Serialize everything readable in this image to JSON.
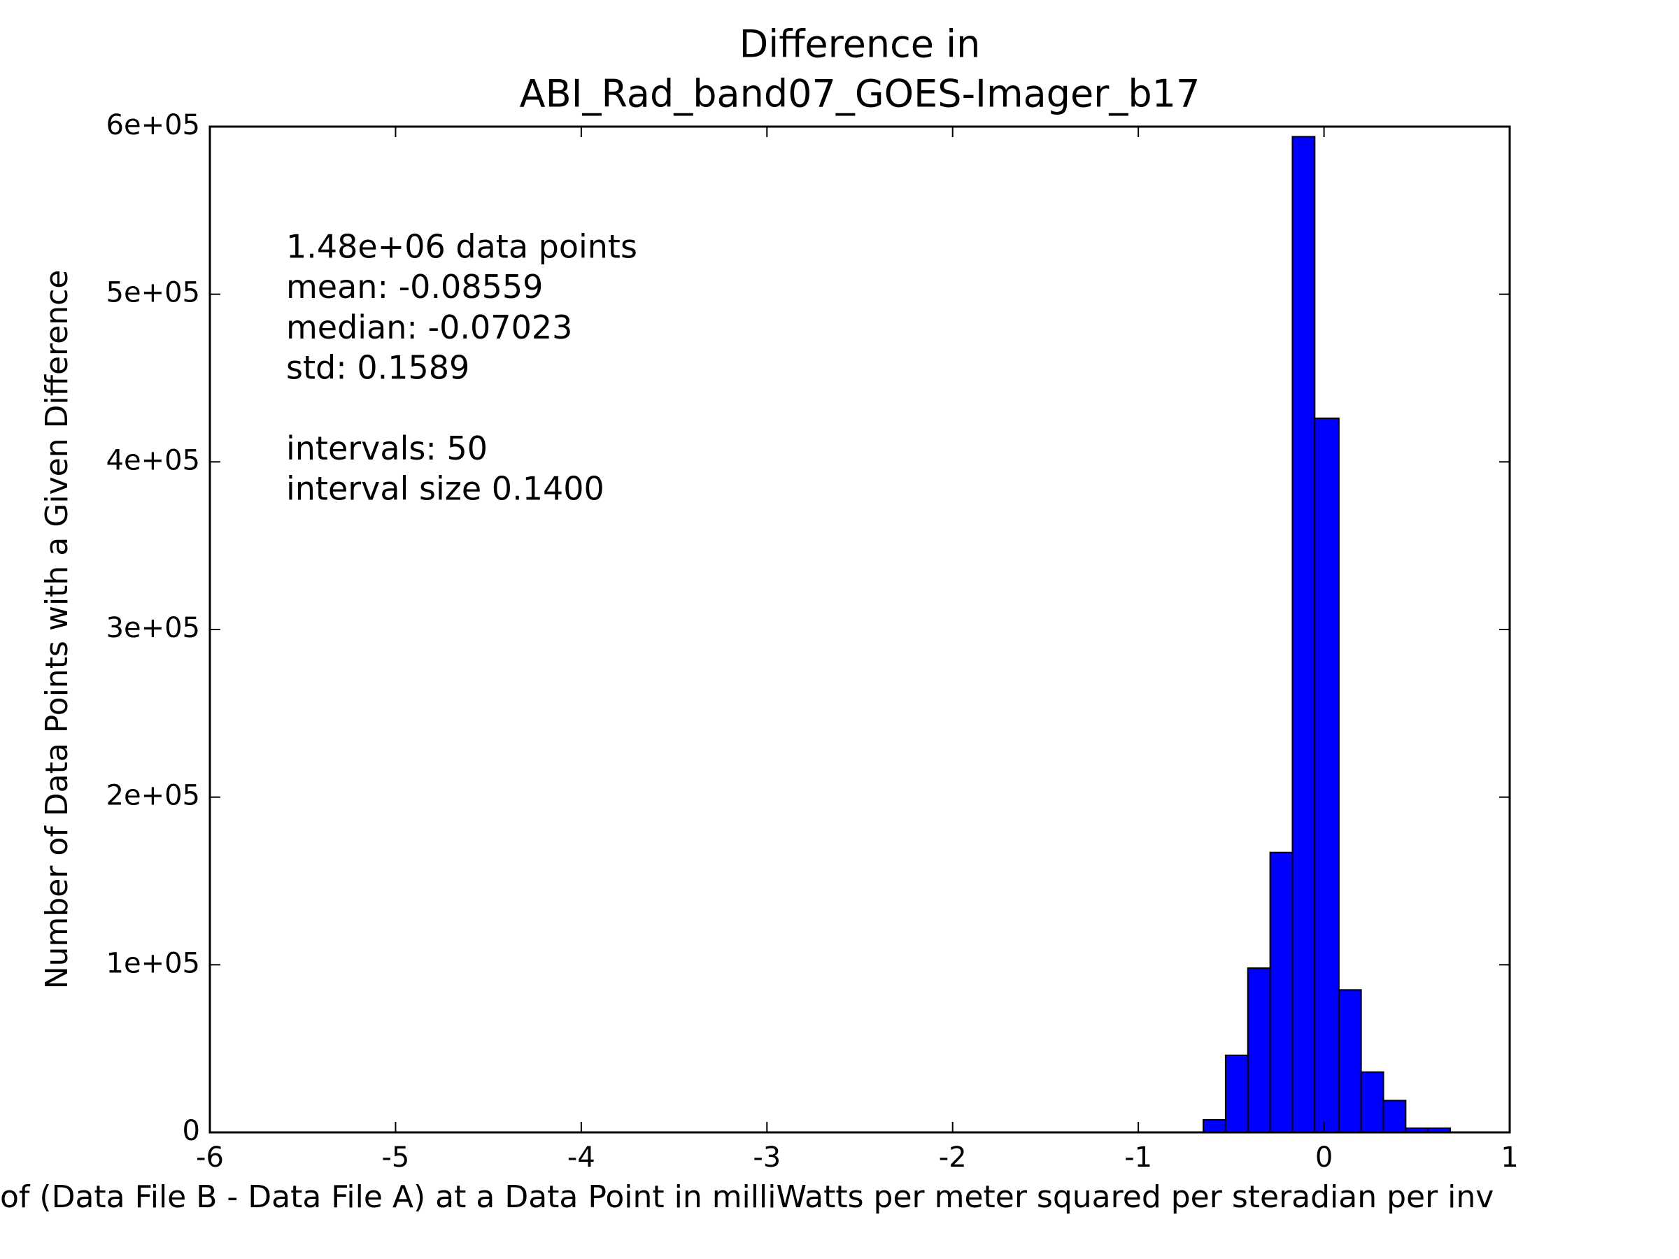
{
  "chart_data": {
    "type": "histogram",
    "title": [
      "Difference in",
      "ABI_Rad_band07_GOES-Imager_b17"
    ],
    "xlabel": "of (Data File B - Data File A) at a Data Point in milliWatts per meter squared per steradian per inv",
    "ylabel": "Number of Data Points with a Given Difference",
    "annotations": [
      [
        "1.48e+06 data points",
        "mean: -0.08559",
        "median: -0.07023",
        "std: 0.1589"
      ],
      [
        "intervals: 50",
        "interval size 0.1400"
      ]
    ],
    "bins": [
      -0.65,
      -0.53,
      -0.41,
      -0.29,
      -0.17,
      -0.05,
      0.08,
      0.2,
      0.32,
      0.44,
      0.56,
      0.68
    ],
    "values": [
      7500,
      46000,
      98000,
      167000,
      594000,
      426000,
      85000,
      36000,
      19000,
      2500,
      2500
    ],
    "color": "#0000ff",
    "edgecolor": "#000000",
    "xlim": [
      -6,
      1
    ],
    "xticks": [
      -6,
      -5,
      -4,
      -3,
      -2,
      -1,
      0,
      1
    ],
    "ylim": [
      0,
      600000
    ],
    "yticks": [
      0,
      {
        "value": 100000,
        "label": "1e+05"
      },
      {
        "value": 200000,
        "label": "2e+05"
      },
      {
        "value": 300000,
        "label": "3e+05"
      },
      {
        "value": 400000,
        "label": "4e+05"
      },
      {
        "value": 500000,
        "label": "5e+05"
      },
      {
        "value": 600000,
        "label": "6e+05"
      }
    ],
    "grid": false
  }
}
